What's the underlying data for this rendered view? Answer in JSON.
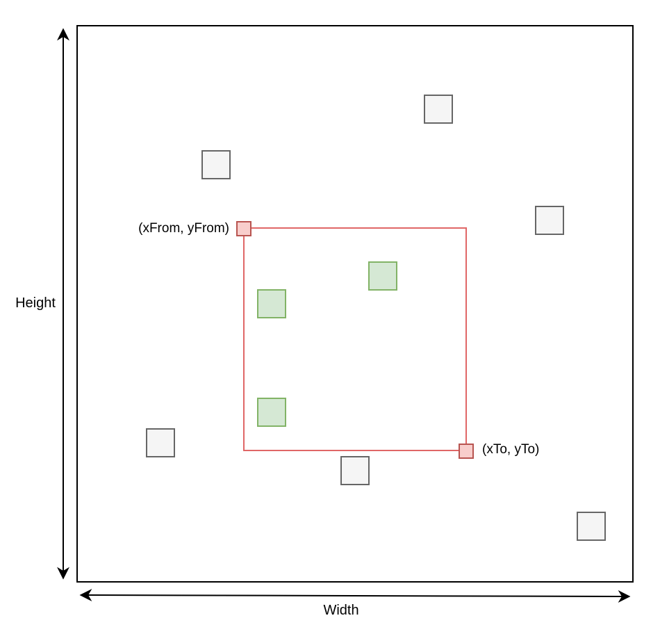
{
  "labels": {
    "height": "Height",
    "width": "Width",
    "from_corner": "(xFrom, yFrom)",
    "to_corner": "(xTo, yTo)"
  },
  "colors": {
    "outline": "#000000",
    "selection_stroke": "#e06666",
    "corner_fill": "#f8cecc",
    "corner_stroke": "#b85450",
    "inside_fill": "#d5e8d4",
    "inside_stroke": "#82b366",
    "outside_fill": "#f5f5f5",
    "outside_stroke": "#666666"
  }
}
